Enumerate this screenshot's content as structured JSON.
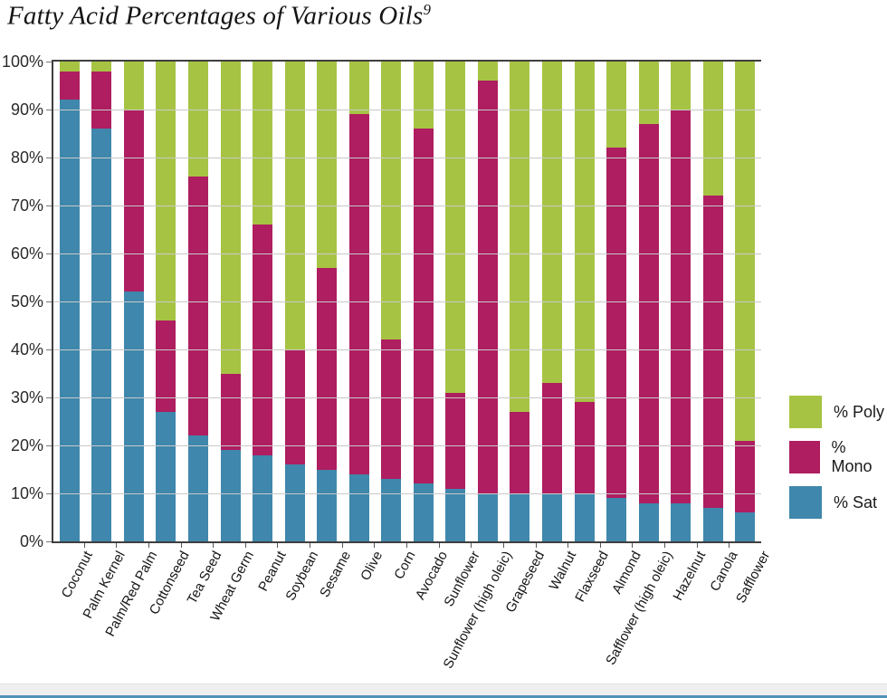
{
  "header": {
    "title": "Fatty Acid Percentages of Various Oils",
    "superscript": "9"
  },
  "colors": {
    "poly_green": "#a7c344",
    "mono_magenta": "#ae1e60",
    "sat_blue": "#3f87ac",
    "gridline": "#c9c9c9",
    "axis": "#3f3f3f",
    "footer_bar_blue": "#4f93b8",
    "footer_strip": "#f0eff0"
  },
  "chart_data": {
    "type": "bar",
    "stacked": true,
    "title": "Fatty Acid Percentages of Various Oils",
    "footnote_superscript": "9",
    "xlabel": "",
    "ylabel": "",
    "ylim": [
      0,
      100
    ],
    "grid": true,
    "y_tick_labels": [
      "100%",
      "90%",
      "80%",
      "70%",
      "60%",
      "50%",
      "40%",
      "30%",
      "20%",
      "10%",
      "0%"
    ],
    "categories": [
      "Coconut",
      "Palm Kernel",
      "Palm/Red Palm",
      "Cottonseed",
      "Tea Seed",
      "Wheat Germ",
      "Peanut",
      "Soybean",
      "Sesame",
      "Olive",
      "Corn",
      "Avocado",
      "Sunflower",
      "Sunflower (high oleic)",
      "Grapeseed",
      "Walnut",
      "Flaxseed",
      "Almond",
      "Safflower (high oleic)",
      "Hazelnut",
      "Canola",
      "Safflower"
    ],
    "series": [
      {
        "name": "% Sat",
        "color": "#3f87ac",
        "values": [
          92,
          86,
          52,
          27,
          22,
          19,
          18,
          16,
          15,
          14,
          13,
          12,
          11,
          10,
          10,
          10,
          10,
          9,
          8,
          8,
          7,
          6
        ]
      },
      {
        "name": "% Mono",
        "color": "#ae1e60",
        "values": [
          6,
          12,
          38,
          19,
          54,
          16,
          48,
          24,
          42,
          75,
          29,
          74,
          20,
          86,
          17,
          23,
          19,
          73,
          79,
          82,
          65,
          15
        ]
      },
      {
        "name": "% Poly",
        "color": "#a7c344",
        "values": [
          2,
          2,
          10,
          54,
          24,
          65,
          34,
          60,
          43,
          11,
          58,
          14,
          69,
          4,
          73,
          67,
          71,
          18,
          13,
          10,
          28,
          79
        ]
      }
    ],
    "legend": [
      "% Poly",
      "% Mono",
      "% Sat"
    ],
    "legend_position": "right"
  }
}
